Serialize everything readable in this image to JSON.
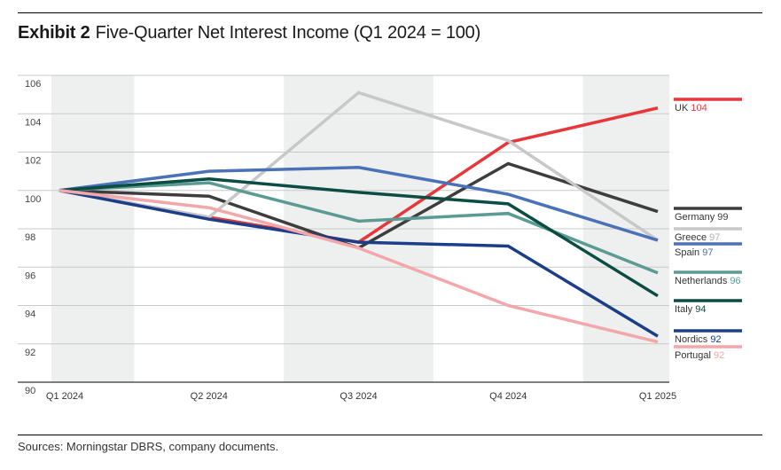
{
  "header": {
    "exhibit": "Exhibit 2",
    "title": "Five-Quarter Net Interest Income (Q1 2024 = 100)"
  },
  "footer": {
    "source": "Sources: Morningstar DBRS, company documents."
  },
  "chart_data": {
    "type": "line",
    "x": [
      "Q1 2024",
      "Q2 2024",
      "Q3 2024",
      "Q4 2024",
      "Q1 2025"
    ],
    "ylim": [
      90,
      106
    ],
    "yticks": [
      "106",
      "104",
      "102",
      "100",
      "98",
      "96",
      "94",
      "92",
      "90"
    ],
    "grid": true,
    "series": [
      {
        "name": "UK",
        "label_value": "104",
        "color": "#e8363b",
        "label_value_color": "#e8363b",
        "values": [
          100,
          98.6,
          97.3,
          102.5,
          104.3
        ]
      },
      {
        "name": "Germany",
        "label_value": "99",
        "color": "#3d3d3d",
        "label_value_color": "#3d3d3d",
        "values": [
          100,
          99.7,
          97.0,
          101.4,
          98.9
        ]
      },
      {
        "name": "Greece",
        "label_value": "97",
        "color": "#c8c8c8",
        "label_value_color": "#b0b0b0",
        "values": [
          100,
          98.6,
          105.1,
          102.6,
          97.4
        ]
      },
      {
        "name": "Spain",
        "label_value": "97",
        "color": "#4a72b8",
        "label_value_color": "#4a72b8",
        "values": [
          100,
          101.0,
          101.2,
          99.8,
          97.4
        ]
      },
      {
        "name": "Netherlands",
        "label_value": "96",
        "color": "#5c9b94",
        "label_value_color": "#5c9b94",
        "values": [
          100,
          100.4,
          98.4,
          98.8,
          95.7
        ]
      },
      {
        "name": "Italy",
        "label_value": "94",
        "color": "#0b4d42",
        "label_value_color": "#0b4d42",
        "values": [
          100,
          100.6,
          99.9,
          99.3,
          94.5
        ]
      },
      {
        "name": "Nordics",
        "label_value": "92",
        "color": "#1c3e88",
        "label_value_color": "#1c3e88",
        "values": [
          100,
          98.5,
          97.3,
          97.1,
          92.4
        ]
      },
      {
        "name": "Portugal",
        "label_value": "92",
        "color": "#f4a7ab",
        "label_value_color": "#f4a7ab",
        "values": [
          100,
          99.1,
          97.0,
          94.0,
          92.1
        ]
      }
    ]
  }
}
